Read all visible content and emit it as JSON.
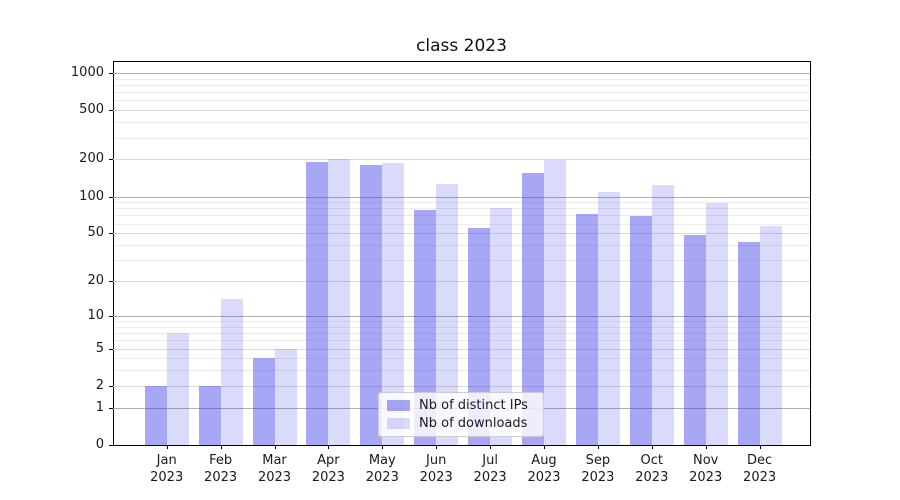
{
  "chart_data": {
    "type": "bar",
    "title": "class 2023",
    "xlabel": "",
    "ylabel": "",
    "categories": [
      "Jan",
      "Feb",
      "Mar",
      "Apr",
      "May",
      "Jun",
      "Jul",
      "Aug",
      "Sep",
      "Oct",
      "Nov",
      "Dec"
    ],
    "year": "2023",
    "series": [
      {
        "name": "Nb of distinct IPs",
        "color": "rgba(60,60,235,0.45)",
        "values": [
          2,
          2,
          4,
          190,
          181,
          78,
          55,
          154,
          72,
          69,
          48,
          42
        ]
      },
      {
        "name": "Nb of downloads",
        "color": "rgba(60,60,235,0.19)",
        "values": [
          7,
          14,
          5,
          202,
          188,
          126,
          80,
          197,
          108,
          124,
          89,
          57
        ]
      }
    ],
    "yscale": "log1p",
    "ylim": [
      0,
      1250
    ],
    "yticks": [
      0,
      1,
      2,
      5,
      10,
      20,
      50,
      100,
      200,
      500,
      1000
    ],
    "minor_gridlines": [
      3,
      4,
      6,
      7,
      8,
      9,
      30,
      40,
      60,
      70,
      80,
      90,
      300,
      400,
      600,
      700,
      800,
      900
    ],
    "grid": true,
    "legend_position": "lower center",
    "colors": {
      "decade_grid": "#b0b0b0",
      "tick_grid": "#dbdbdb",
      "minor_grid": "#ececec",
      "spine": "#000000",
      "text": "#1a1a1a",
      "background": "#ffffff"
    }
  }
}
